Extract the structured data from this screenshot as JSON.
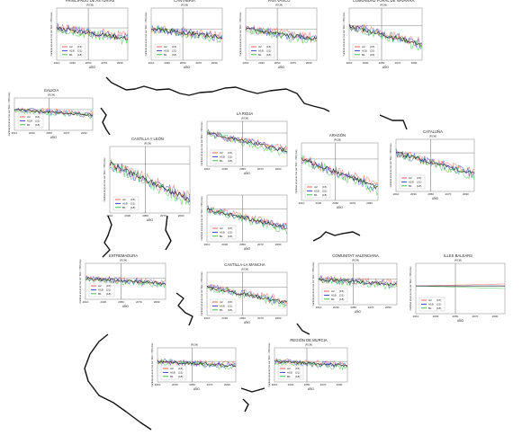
{
  "colors": {
    "A2": "#e8635a",
    "A1B": "#3a44c8",
    "B1": "#3fbf4a",
    "mean": "#222222",
    "ref": "#666666",
    "coast": "#111111",
    "frame": "#999999"
  },
  "ylabel": "Cantidad anual de días con Tmin > P90 (días)",
  "xlabel": "AÑO",
  "legend": [
    {
      "key": "A2",
      "label": "A2",
      "n": "(15)"
    },
    {
      "key": "A1B",
      "label": "A1B",
      "n": "(21)"
    },
    {
      "key": "B1",
      "label": "B1",
      "n": "(18)"
    }
  ],
  "ticks": [
    "2010",
    "2030",
    "2050",
    "2070",
    "2090"
  ],
  "chart_data": [
    {
      "type": "line",
      "title": "PRINCIPADO DE ASTURIAS",
      "subtitle": "(RCM)",
      "x": [
        2010,
        2100
      ],
      "ylim": [
        0,
        100
      ],
      "trend": [
        62,
        42
      ],
      "legend_n": [
        "(15)",
        "(21)",
        "(18)"
      ]
    },
    {
      "type": "line",
      "title": "CANTABRIA",
      "subtitle": "(RCM)",
      "x": [
        2010,
        2100
      ],
      "ylim": [
        0,
        100
      ],
      "trend": [
        60,
        44
      ],
      "legend_n": [
        "(15)",
        "(21)",
        "(18)"
      ]
    },
    {
      "type": "line",
      "title": "PAÍS VASCO",
      "subtitle": "(RCM)",
      "x": [
        2010,
        2100
      ],
      "ylim": [
        0,
        100
      ],
      "trend": [
        60,
        40
      ],
      "legend_n": [
        "(15)",
        "(21)",
        "(18)"
      ]
    },
    {
      "type": "line",
      "title": "COMUNIDAD FORAL DE NAVARRA",
      "subtitle": "(RCM)",
      "x": [
        2010,
        2100
      ],
      "ylim": [
        0,
        100
      ],
      "trend": [
        66,
        30
      ],
      "legend_n": [
        "(15)",
        "(21)",
        "(18)"
      ]
    },
    {
      "type": "line",
      "title": "GALICIA",
      "subtitle": "(RCM)",
      "x": [
        2010,
        2100
      ],
      "ylim": [
        0,
        100
      ],
      "trend": [
        64,
        48
      ],
      "legend_n": [
        "(15)",
        "(21)",
        "(18)"
      ]
    },
    {
      "type": "line",
      "title": "LA RIOJA",
      "subtitle": "(RCM)",
      "x": [
        2010,
        2100
      ],
      "ylim": [
        0,
        100
      ],
      "trend": [
        74,
        34
      ],
      "legend_n": [
        "(15)",
        "(21)",
        "(18)"
      ]
    },
    {
      "type": "line",
      "title": "CASTILLA Y LEÓN",
      "subtitle": "(RCM)",
      "x": [
        2010,
        2100
      ],
      "ylim": [
        0,
        100
      ],
      "trend": [
        74,
        20
      ],
      "legend_n": [
        "(15)",
        "(21)",
        "(18)"
      ]
    },
    {
      "type": "line",
      "title": "ARAGÓN",
      "subtitle": "(RCM)",
      "x": [
        2010,
        2100
      ],
      "ylim": [
        0,
        100
      ],
      "trend": [
        72,
        22
      ],
      "legend_n": [
        "(15)",
        "(21)",
        "(18)"
      ]
    },
    {
      "type": "line",
      "title": "CATALUÑA",
      "subtitle": "(RCM)",
      "x": [
        2010,
        2100
      ],
      "ylim": [
        0,
        100
      ],
      "trend": [
        74,
        34
      ],
      "legend_n": [
        "(15)",
        "(21)",
        "(18)"
      ]
    },
    {
      "type": "line",
      "title": "",
      "subtitle": "",
      "x": [
        2010,
        2100
      ],
      "ylim": [
        0,
        100
      ],
      "trend": [
        70,
        30
      ],
      "legend_n": [
        "(15)",
        "(21)",
        "(18)"
      ]
    },
    {
      "type": "line",
      "title": "EXTREMADURA",
      "subtitle": "(RCM)",
      "x": [
        2010,
        2100
      ],
      "ylim": [
        0,
        100
      ],
      "trend": [
        58,
        44
      ],
      "legend_n": [
        "(15)",
        "(21)",
        "(18)"
      ]
    },
    {
      "type": "line",
      "title": "CASTILLA-LA MANCHA",
      "subtitle": "(RCM)",
      "x": [
        2010,
        2100
      ],
      "ylim": [
        0,
        100
      ],
      "trend": [
        66,
        30
      ],
      "legend_n": [
        "(15)",
        "(21)",
        "(18)"
      ]
    },
    {
      "type": "line",
      "title": "COMUNITAT VALENCIANA",
      "subtitle": "(RCM)",
      "x": [
        2010,
        2100
      ],
      "ylim": [
        0,
        100
      ],
      "trend": [
        62,
        48
      ],
      "legend_n": [
        "(15)",
        "(21)",
        "(18)"
      ]
    },
    {
      "type": "line",
      "title": "ILLES BALEARS",
      "subtitle": "(RCM)",
      "x": [
        2010,
        2100
      ],
      "ylim": [
        0,
        100
      ],
      "trend": [
        55,
        55
      ],
      "legend_n": [
        "(15)",
        "(21)",
        "(18)"
      ]
    },
    {
      "type": "line",
      "title": "",
      "subtitle": "(RCM)",
      "x": [
        2010,
        2100
      ],
      "ylim": [
        0,
        100
      ],
      "trend": [
        60,
        48
      ],
      "legend_n": [
        "(15)",
        "(21)",
        "(18)"
      ]
    },
    {
      "type": "line",
      "title": "REGIÓN DE MURCIA",
      "subtitle": "(RCM)",
      "x": [
        2010,
        2100
      ],
      "ylim": [
        0,
        100
      ],
      "trend": [
        60,
        48
      ],
      "legend_n": [
        "(15)",
        "(21)",
        "(18)"
      ]
    }
  ]
}
